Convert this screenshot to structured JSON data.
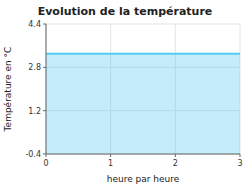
{
  "chart_data": {
    "type": "area",
    "title": "Evolution de la température",
    "xlabel": "heure par heure",
    "ylabel": "Température en °C",
    "x": [
      0,
      3
    ],
    "values": [
      3.3,
      3.3
    ],
    "color": "#55ccee",
    "xlim": [
      0,
      3
    ],
    "ylim": [
      -0.4,
      4.4
    ],
    "xticks": [
      0,
      1,
      2,
      3
    ],
    "yticks": [
      -0.4,
      1.2,
      2.8,
      4.4
    ],
    "grid": true
  }
}
